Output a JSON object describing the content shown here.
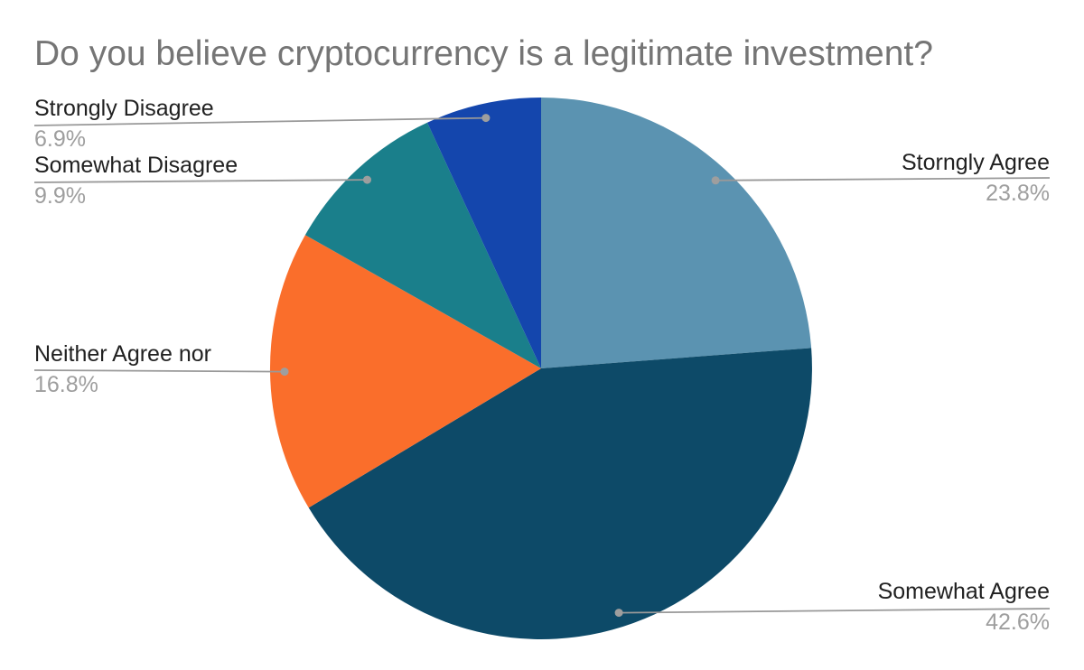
{
  "chart_data": {
    "type": "pie",
    "title": "Do you believe cryptocurrency is a legitimate investment?",
    "slices": [
      {
        "label": "Storngly Agree",
        "value": 23.8,
        "pct_label": "23.8%",
        "color": "#5b93b1"
      },
      {
        "label": "Somewhat Agree",
        "value": 42.6,
        "pct_label": "42.6%",
        "color": "#0d4a68"
      },
      {
        "label": "Neither Agree nor",
        "value": 16.8,
        "pct_label": "16.8%",
        "color": "#fa6e2b"
      },
      {
        "label": "Somewhat Disagree",
        "value": 9.9,
        "pct_label": "9.9%",
        "color": "#1a7f8b"
      },
      {
        "label": "Strongly Disagree",
        "value": 6.9,
        "pct_label": "6.9%",
        "color": "#1446ad"
      }
    ],
    "start_angle_deg": 0,
    "direction": "clockwise",
    "legend_position": "callout-labels",
    "colors": {
      "title_text": "#757575",
      "label_text": "#212121",
      "percent_text": "#9e9e9e",
      "callout_line": "#999999",
      "callout_dot": "#9e9e9e",
      "background": "#ffffff"
    }
  }
}
